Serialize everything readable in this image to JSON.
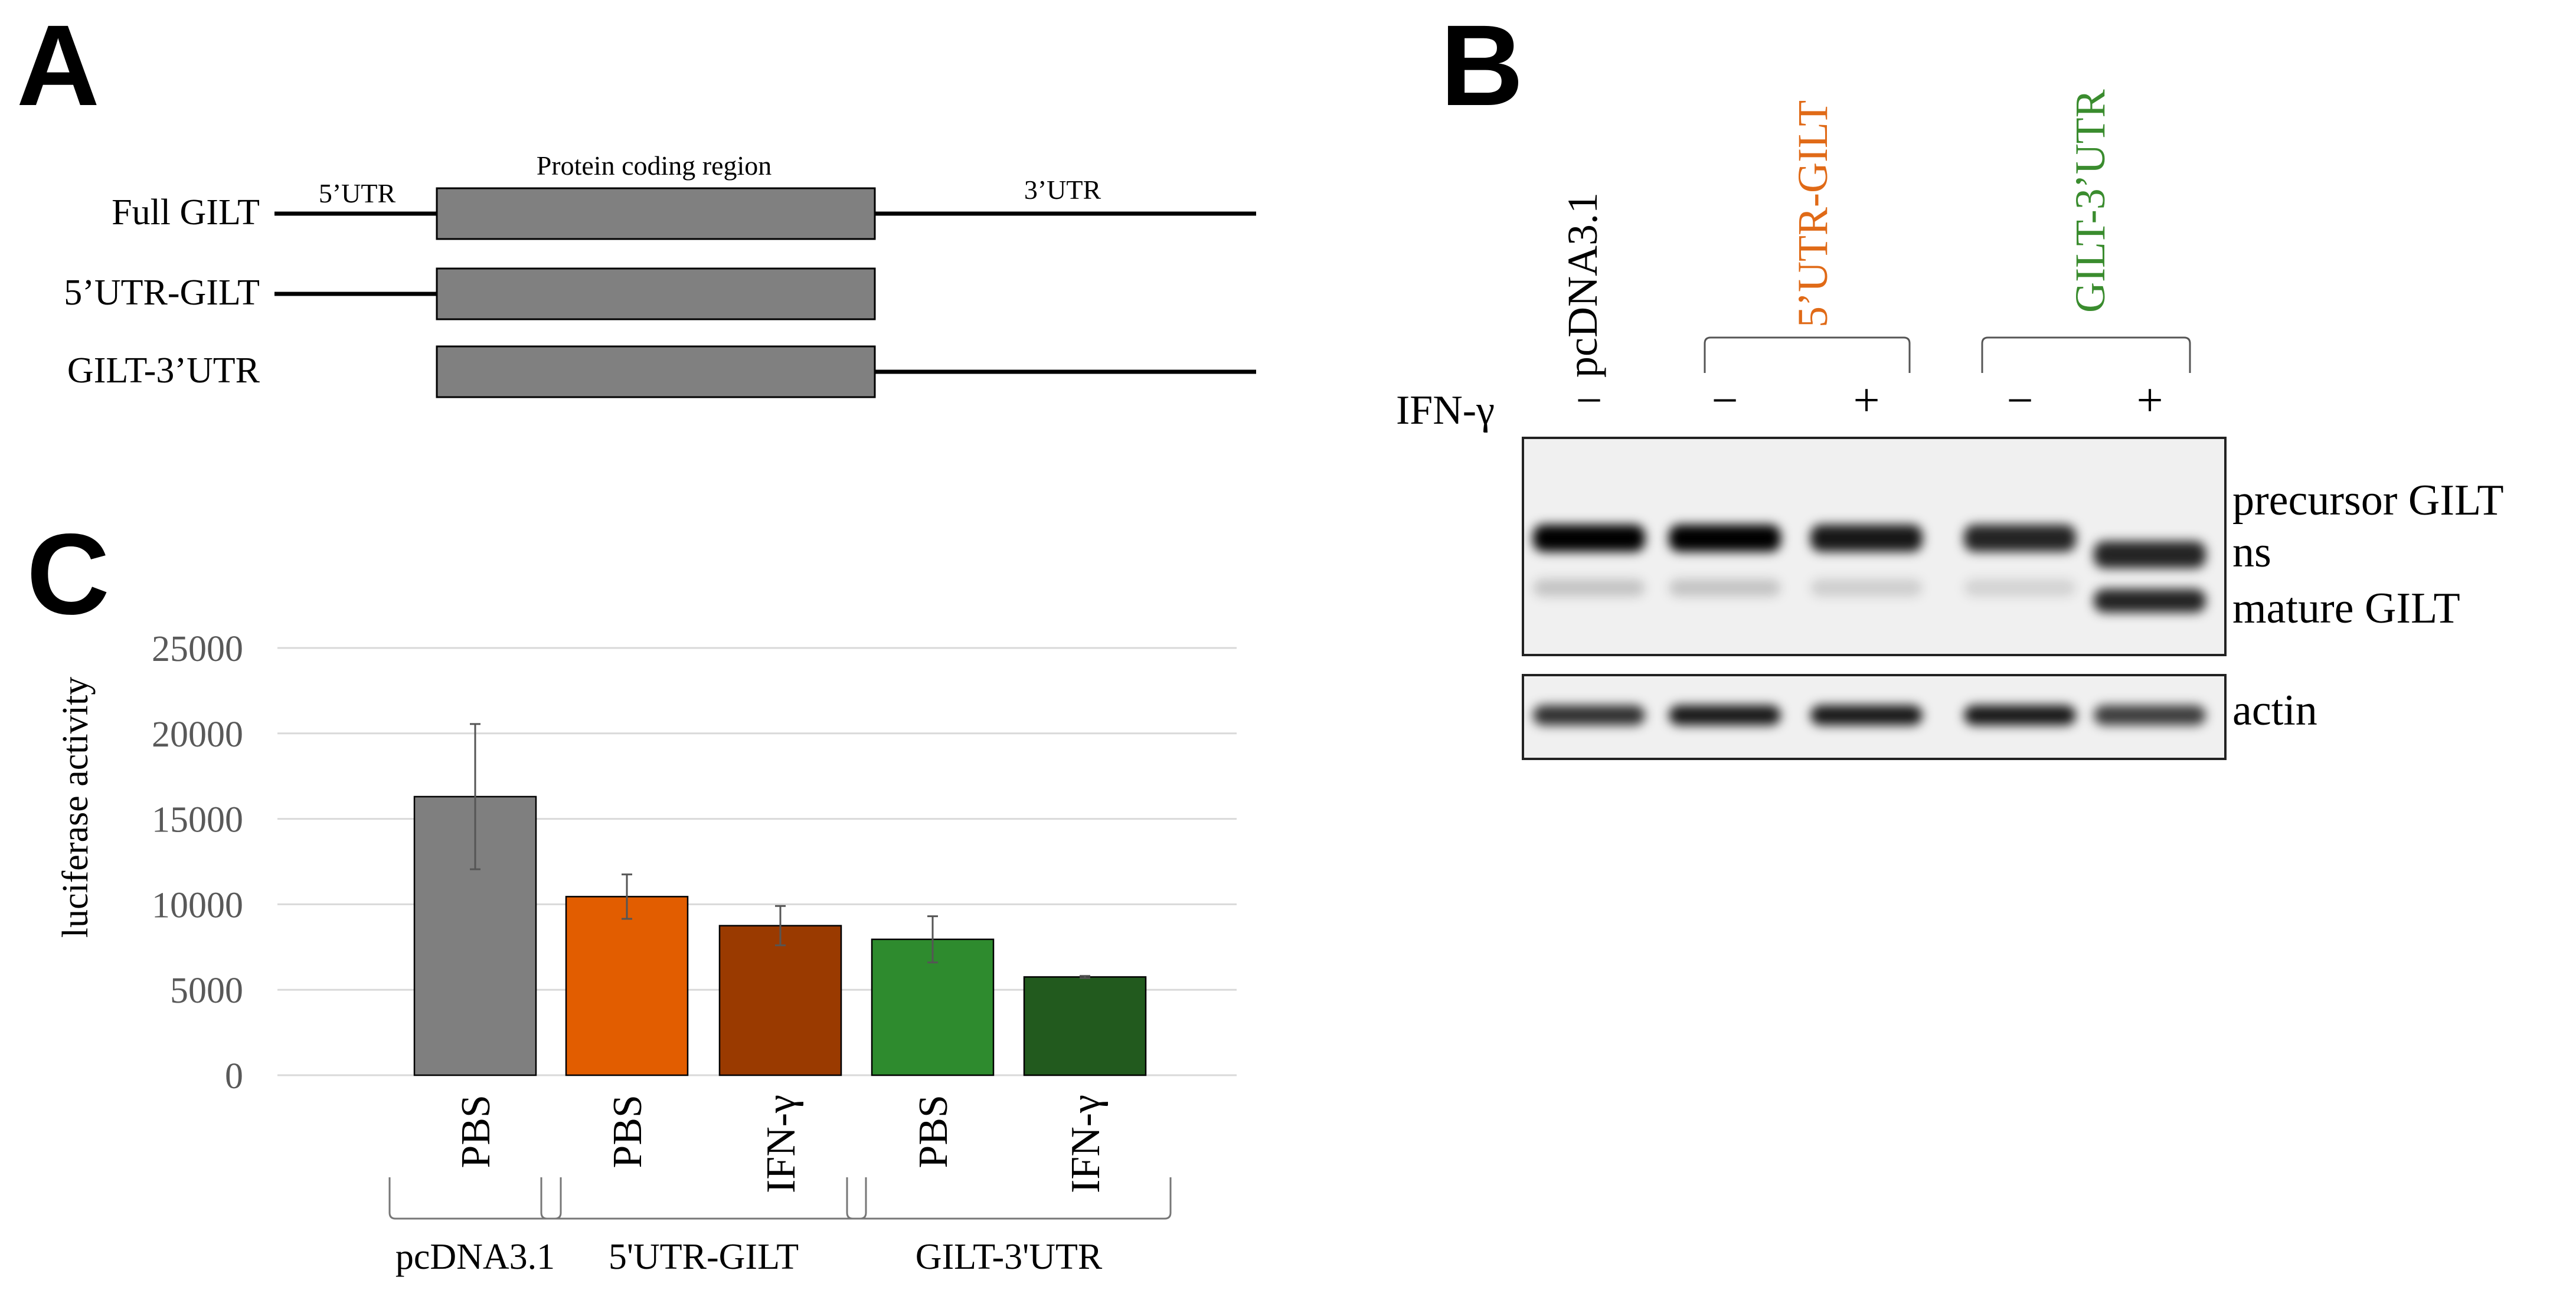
{
  "panels": {
    "a": {
      "letter": "A"
    },
    "b": {
      "letter": "B"
    },
    "c": {
      "letter": "C"
    }
  },
  "diagram": {
    "labels": {
      "utr5": "5’UTR",
      "coding": "Protein coding region",
      "utr3": "3’UTR"
    },
    "constructs": [
      {
        "name": "Full GILT",
        "has_5utr": true,
        "has_3utr": true
      },
      {
        "name": "5’UTR-GILT",
        "has_5utr": true,
        "has_3utr": false
      },
      {
        "name": "GILT-3’UTR",
        "has_5utr": false,
        "has_3utr": true
      }
    ],
    "colors": {
      "box": "#808080",
      "line": "#000000"
    }
  },
  "blot": {
    "lanes": [
      {
        "construct": "pcDNA3.1",
        "color": "#000000",
        "treatment": "−"
      },
      {
        "construct": "5’UTR-GILT",
        "color": "#E06A17",
        "treatment": "−"
      },
      {
        "construct": "5’UTR-GILT",
        "color": "#E06A17",
        "treatment": "+"
      },
      {
        "construct": "GILT-3’UTR",
        "color": "#3A8C2E",
        "treatment": "−"
      },
      {
        "construct": "GILT-3’UTR",
        "color": "#3A8C2E",
        "treatment": "+"
      }
    ],
    "treatment_label": "IFN-γ",
    "band_labels": {
      "precursor": "precursor GILT",
      "ns": "ns",
      "mature": "mature GILT",
      "actin": "actin"
    },
    "band_intensity": {
      "precursor": [
        1.0,
        1.0,
        0.9,
        0.85,
        0.85
      ],
      "ns": [
        0.0,
        0.0,
        0.0,
        0.0,
        0.0
      ],
      "faint": [
        0.18,
        0.18,
        0.14,
        0.12,
        0.0
      ],
      "mature": [
        0.0,
        0.0,
        0.0,
        0.0,
        0.85
      ],
      "actin": [
        0.8,
        0.9,
        0.9,
        0.9,
        0.75
      ]
    }
  },
  "chart_data": {
    "type": "bar",
    "ylabel": "luciferase activity",
    "ylim": [
      0,
      25000
    ],
    "yticks": [
      0,
      5000,
      10000,
      15000,
      20000,
      25000
    ],
    "grid": true,
    "categories": [
      "PBS",
      "PBS",
      "IFN-γ",
      "PBS",
      "IFN-γ"
    ],
    "groups": [
      {
        "label": "pcDNA3.1",
        "members": [
          0
        ]
      },
      {
        "label": "5'UTR-GILT",
        "members": [
          1,
          2
        ]
      },
      {
        "label": "GILT-3'UTR",
        "members": [
          3,
          4
        ]
      }
    ],
    "values": [
      16300,
      10450,
      8750,
      7950,
      5750
    ],
    "errors": [
      4250,
      1300,
      1150,
      1350,
      60
    ],
    "colors": [
      "#7F7F7F",
      "#E25D00",
      "#9A3A00",
      "#2E8B2E",
      "#225A1E"
    ]
  }
}
